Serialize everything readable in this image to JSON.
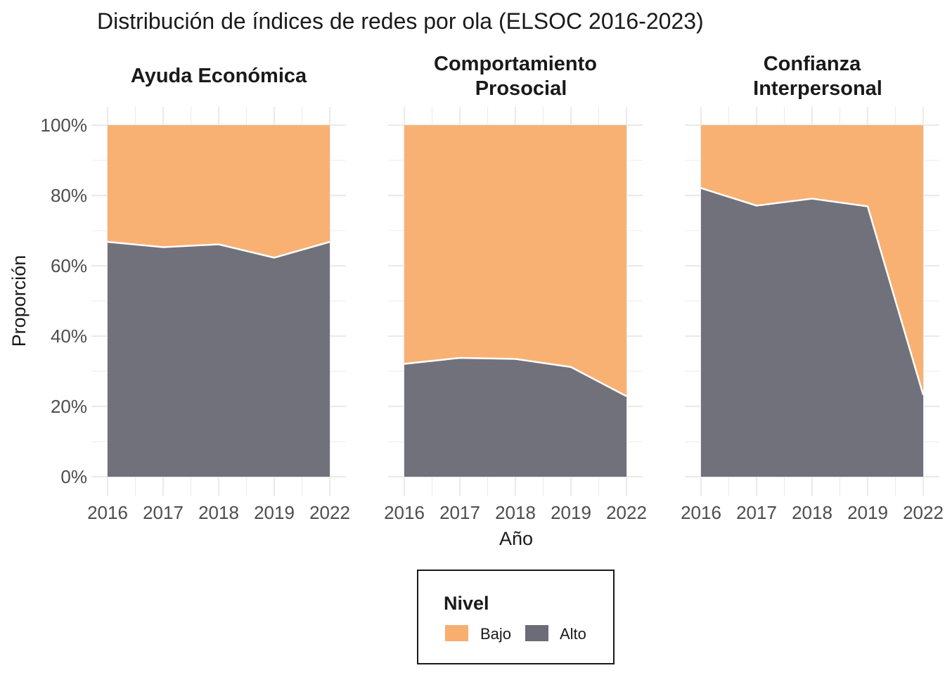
{
  "chart_data": {
    "type": "area",
    "stacked": "fill",
    "title": "Distribución de índices de redes por ola (ELSOC 2016-2023)",
    "xlabel": "Año",
    "ylabel": "Proporción",
    "categories": [
      "2016",
      "2017",
      "2018",
      "2019",
      "2022"
    ],
    "y_ticks": [
      "0%",
      "20%",
      "40%",
      "60%",
      "80%",
      "100%"
    ],
    "ylim": [
      0,
      1
    ],
    "grid": true,
    "legend": {
      "title": "Nivel",
      "position": "bottom",
      "items": [
        {
          "label": "Bajo",
          "color": "#f8ae6e"
        },
        {
          "label": "Alto",
          "color": "#6b6c77"
        }
      ]
    },
    "colors": {
      "Bajo": "#f8ae6e",
      "Alto": "#6b6c77",
      "boundary": "#ffffff"
    },
    "facets": [
      {
        "label_lines": [
          "Ayuda Económica"
        ],
        "series": [
          {
            "name": "Alto",
            "values": [
              0.668,
              0.653,
              0.661,
              0.623,
              0.668
            ]
          },
          {
            "name": "Bajo",
            "values": [
              0.332,
              0.347,
              0.339,
              0.377,
              0.332
            ]
          }
        ]
      },
      {
        "label_lines": [
          "Comportamiento",
          "Prosocial"
        ],
        "series": [
          {
            "name": "Alto",
            "values": [
              0.321,
              0.338,
              0.335,
              0.312,
              0.229
            ]
          },
          {
            "name": "Bajo",
            "values": [
              0.679,
              0.662,
              0.665,
              0.688,
              0.771
            ]
          }
        ]
      },
      {
        "label_lines": [
          "Confianza",
          "Interpersonal"
        ],
        "series": [
          {
            "name": "Alto",
            "values": [
              0.821,
              0.771,
              0.791,
              0.769,
              0.233
            ]
          },
          {
            "name": "Bajo",
            "values": [
              0.179,
              0.229,
              0.209,
              0.231,
              0.767
            ]
          }
        ]
      }
    ]
  }
}
